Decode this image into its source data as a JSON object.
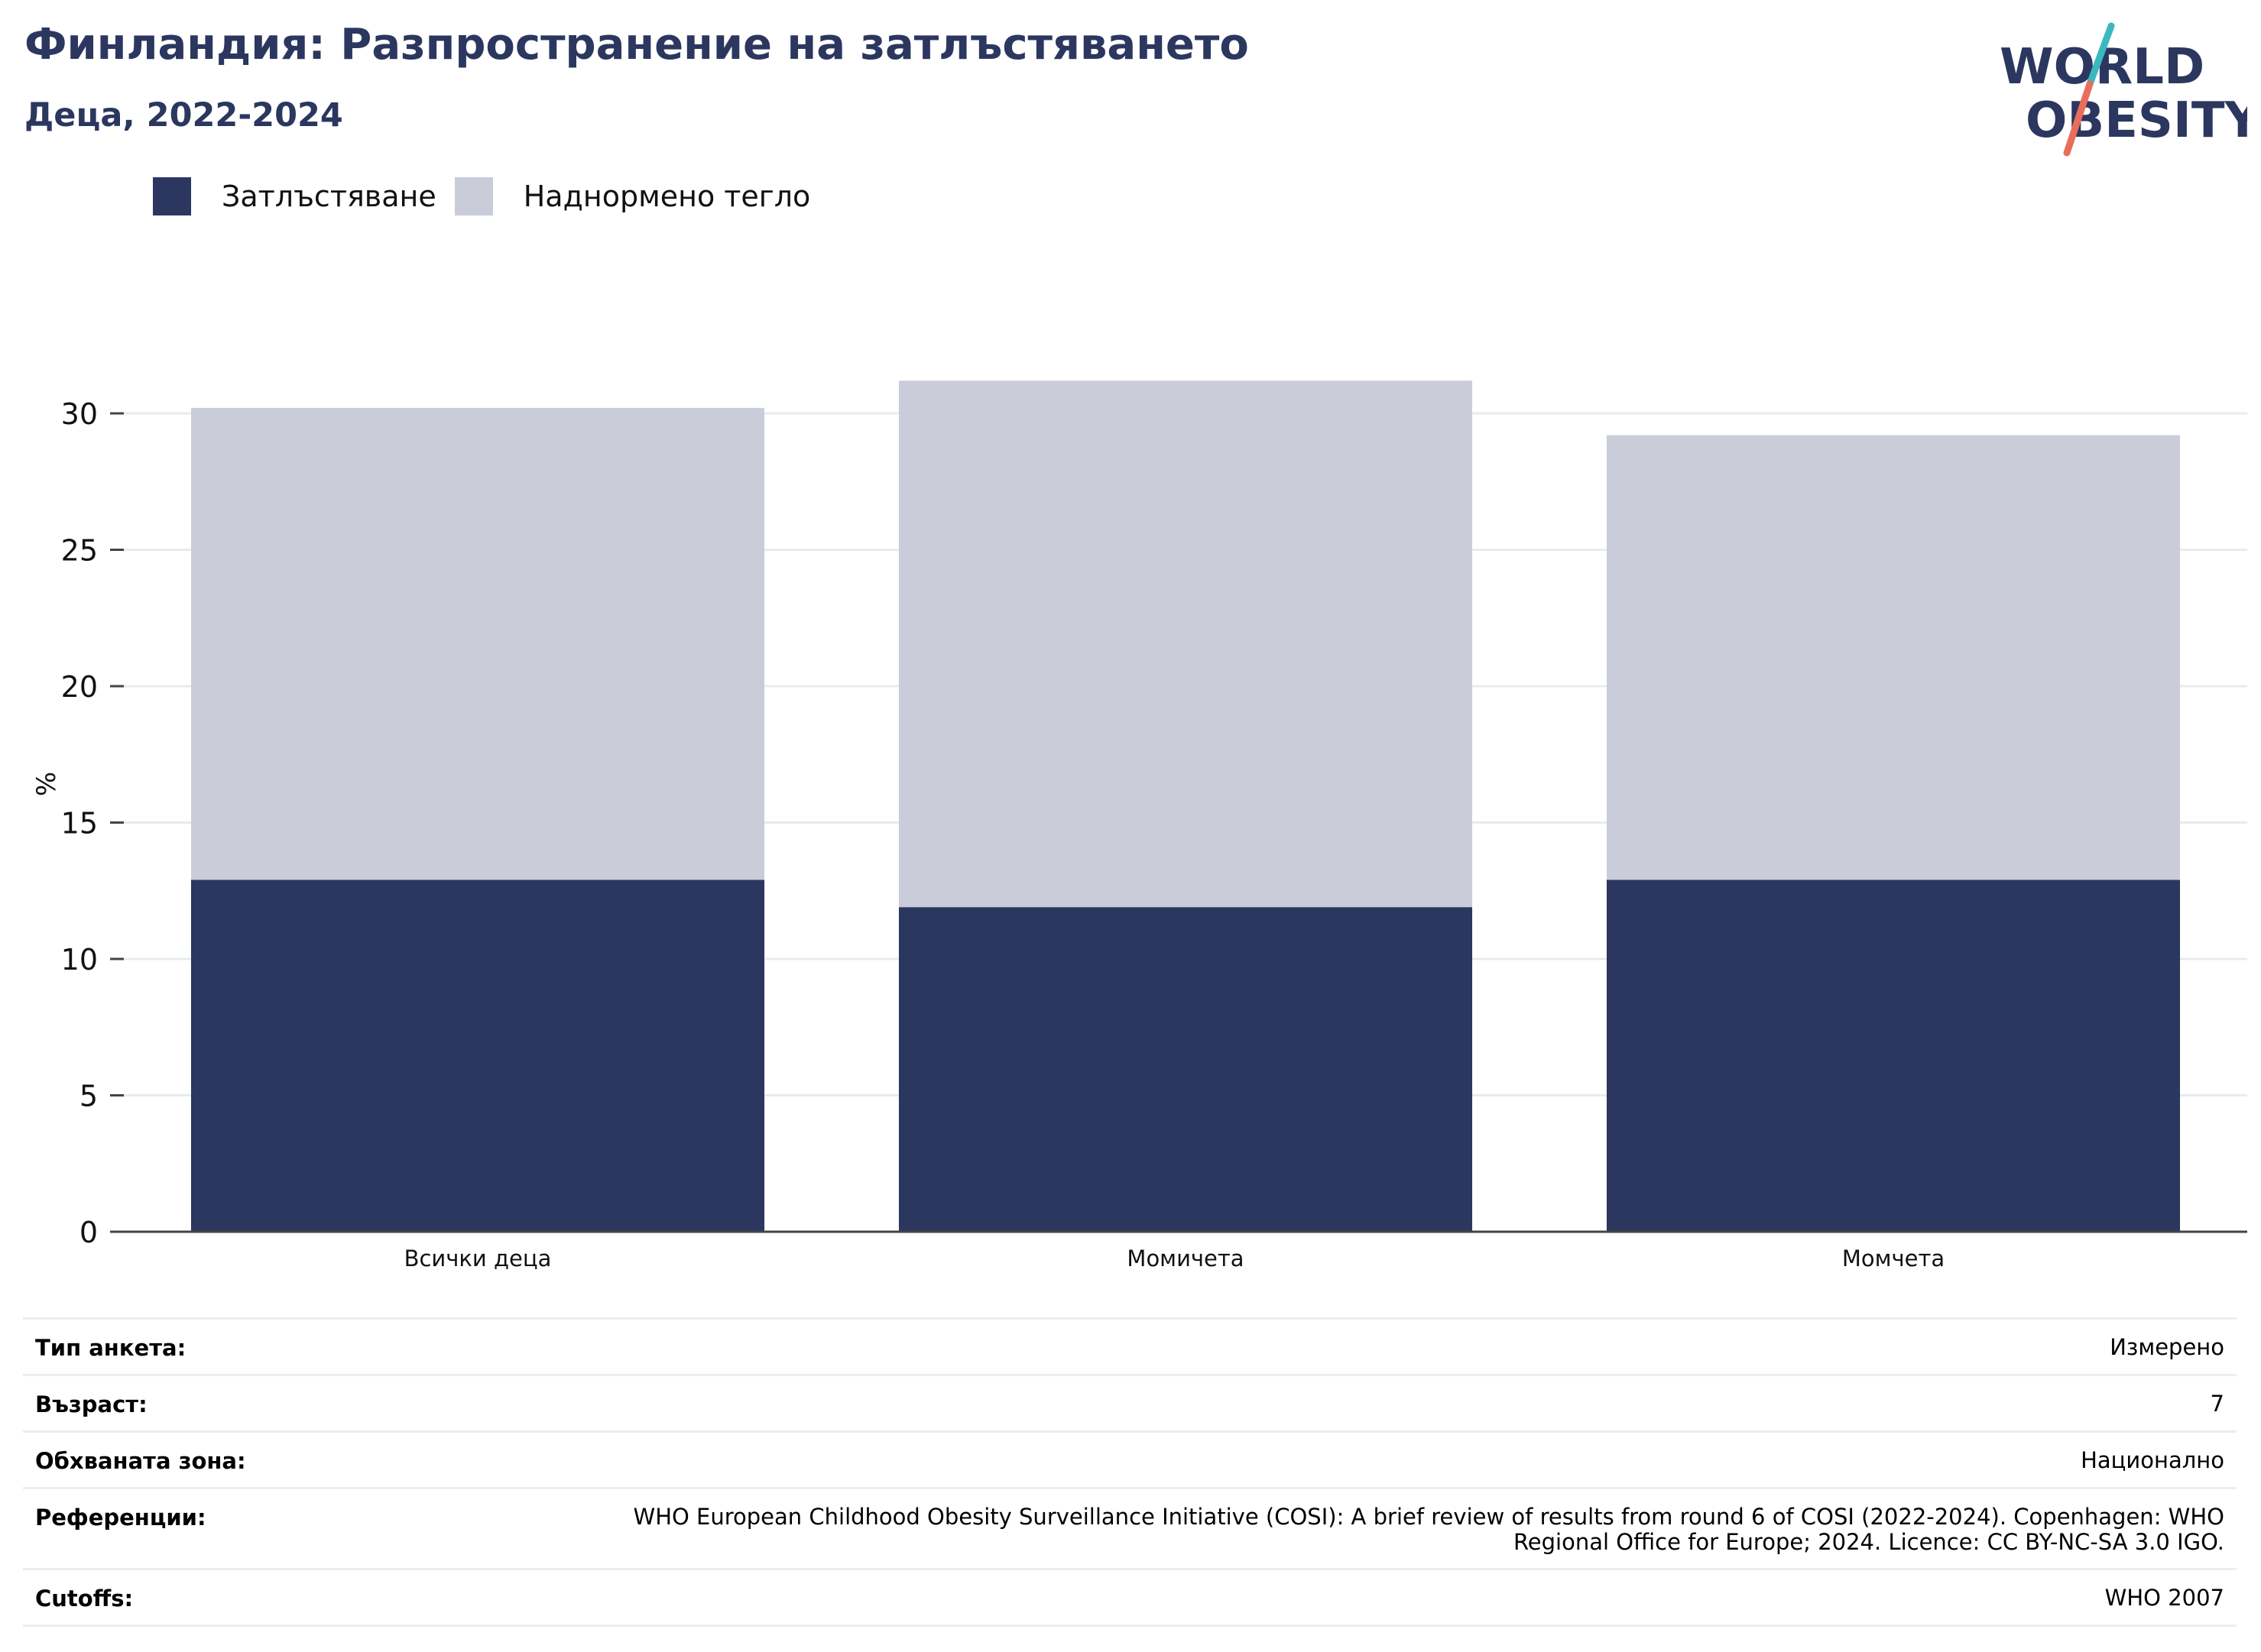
{
  "header": {
    "title": "Финландия: Разпространение на затлъстяването",
    "subtitle": "Деца, 2022-2024"
  },
  "logo": {
    "line1": "WORLD",
    "line2": "OBESITY"
  },
  "colors": {
    "obesity": "#2b375f",
    "overweight": "#cacdd9",
    "title": "#2b375f",
    "logo_text": "#2b375f",
    "logo_slash_teal": "#3bb8bf",
    "logo_slash_coral": "#e96d5b",
    "gridline": "#e8ebee",
    "axis": "#444444"
  },
  "legend": {
    "placement": "top-left",
    "items": [
      {
        "label": "Затлъстяване",
        "color": "#2b375f"
      },
      {
        "label": "Наднормено тегло",
        "color": "#cacdd9"
      }
    ]
  },
  "chart_data": {
    "type": "bar",
    "stacked": true,
    "categories": [
      "Всички деца",
      "Момичета",
      "Момчета"
    ],
    "series": [
      {
        "name": "Затлъстяване",
        "values": [
          12.9,
          11.9,
          12.9
        ]
      },
      {
        "name": "Наднормено тегло",
        "values": [
          17.3,
          19.3,
          16.3
        ]
      }
    ],
    "ylabel": "%",
    "xlabel": "",
    "ylim": [
      0,
      32
    ],
    "yticks": [
      0,
      5,
      10,
      15,
      20,
      25,
      30
    ],
    "grid": true
  },
  "info": [
    {
      "label": "Тип анкета:",
      "value": "Измерено"
    },
    {
      "label": "Възраст:",
      "value": "7"
    },
    {
      "label": "Обхваната зона:",
      "value": "Национално"
    },
    {
      "label": "Референции:",
      "value": "WHO European Childhood Obesity Surveillance Initiative (COSI): A brief review of results from round 6 of COSI (2022-2024). Copenhagen: WHO Regional Office for Europe; 2024. Licence: CC BY-NC-SA 3.0 IGO."
    },
    {
      "label": "Cutoffs:",
      "value": "WHO 2007"
    }
  ]
}
